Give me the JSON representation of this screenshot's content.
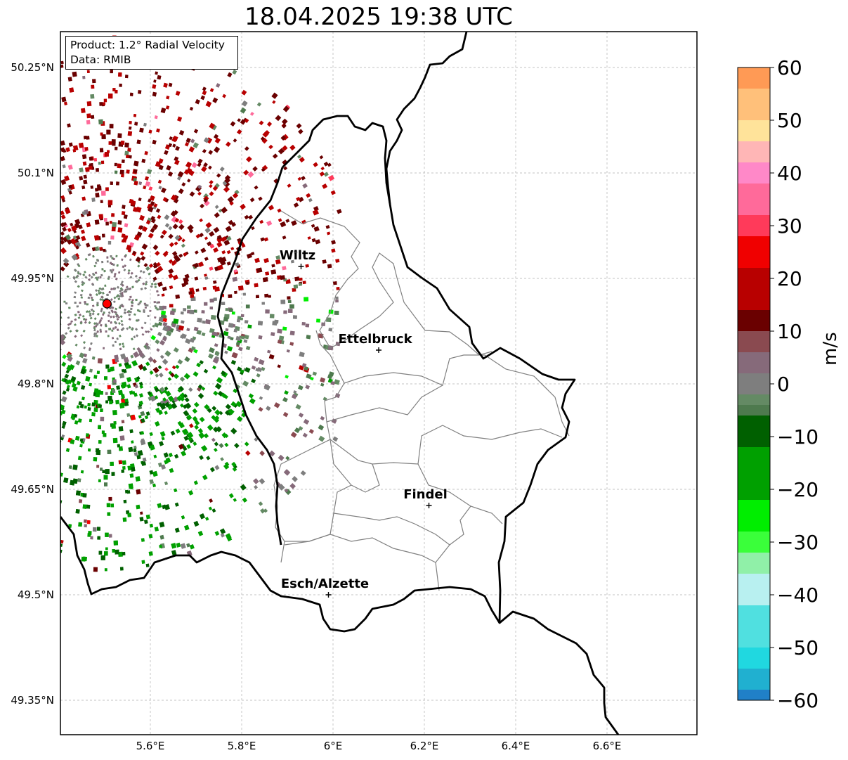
{
  "title": "18.04.2025 19:38 UTC",
  "info_box": {
    "product": "Product: 1.2° Radial Velocity",
    "data": "Data: RMIB"
  },
  "lat_ticks": [
    {
      "label": "50.25°N",
      "lat": 50.25
    },
    {
      "label": "50.1°N",
      "lat": 50.1
    },
    {
      "label": "49.95°N",
      "lat": 49.95
    },
    {
      "label": "49.8°N",
      "lat": 49.8
    },
    {
      "label": "49.65°N",
      "lat": 49.65
    },
    {
      "label": "49.5°N",
      "lat": 49.5
    },
    {
      "label": "49.35°N",
      "lat": 49.35
    }
  ],
  "lon_ticks": [
    {
      "label": "5.6°E",
      "lon": 5.6
    },
    {
      "label": "5.8°E",
      "lon": 5.8
    },
    {
      "label": "6°E",
      "lon": 6.0
    },
    {
      "label": "6.2°E",
      "lon": 6.2
    },
    {
      "label": "6.4°E",
      "lon": 6.4
    },
    {
      "label": "6.6°E",
      "lon": 6.6
    }
  ],
  "cities": [
    {
      "name": "Wiltz",
      "lon": 5.93,
      "lat": 49.967
    },
    {
      "name": "Ettelbruck",
      "lon": 6.1,
      "lat": 49.848
    },
    {
      "name": "Findel",
      "lon": 6.21,
      "lat": 49.627
    },
    {
      "name": "Esch/Alzette",
      "lon": 5.99,
      "lat": 49.5
    }
  ],
  "radar_site": {
    "lon": 5.505,
    "lat": 49.914
  },
  "colorbar": {
    "label": "m/s",
    "min": -60,
    "max": 60,
    "ticks": [
      "60",
      "50",
      "40",
      "30",
      "20",
      "10",
      "0",
      "−10",
      "−20",
      "−30",
      "−40",
      "−50",
      "−60"
    ],
    "stops": [
      {
        "v": 60,
        "c": "#ff9a55"
      },
      {
        "v": 52,
        "c": "#ffc07a"
      },
      {
        "v": 48,
        "c": "#ffe39a"
      },
      {
        "v": 44,
        "c": "#ffb6b6"
      },
      {
        "v": 40,
        "c": "#ff88c8"
      },
      {
        "v": 36,
        "c": "#ff6a9a"
      },
      {
        "v": 28,
        "c": "#ff3a5a"
      },
      {
        "v": 27,
        "c": "#f00000"
      },
      {
        "v": 18,
        "c": "#b80000"
      },
      {
        "v": 11,
        "c": "#6a0000"
      },
      {
        "v": 8,
        "c": "#8a4a50"
      },
      {
        "v": 3,
        "c": "#866a7a"
      },
      {
        "v": 0,
        "c": "#7e7e7e"
      },
      {
        "v": -3,
        "c": "#648a64"
      },
      {
        "v": -6,
        "c": "#4e7a4e"
      },
      {
        "v": -7,
        "c": "#006000"
      },
      {
        "v": -18,
        "c": "#00a000"
      },
      {
        "v": -27,
        "c": "#00ee00"
      },
      {
        "v": -29,
        "c": "#3aff3a"
      },
      {
        "v": -34,
        "c": "#90f0a8"
      },
      {
        "v": -38,
        "c": "#b8f0f0"
      },
      {
        "v": -46,
        "c": "#50e0e0"
      },
      {
        "v": -53,
        "c": "#20d8e0"
      },
      {
        "v": -55,
        "c": "#20b0d0"
      },
      {
        "v": -60,
        "c": "#2080c8"
      }
    ]
  },
  "colors": {
    "border": "#000000",
    "canton": "#808080",
    "grid": "#b0b0b0",
    "radar_marker": "#ff0000"
  }
}
